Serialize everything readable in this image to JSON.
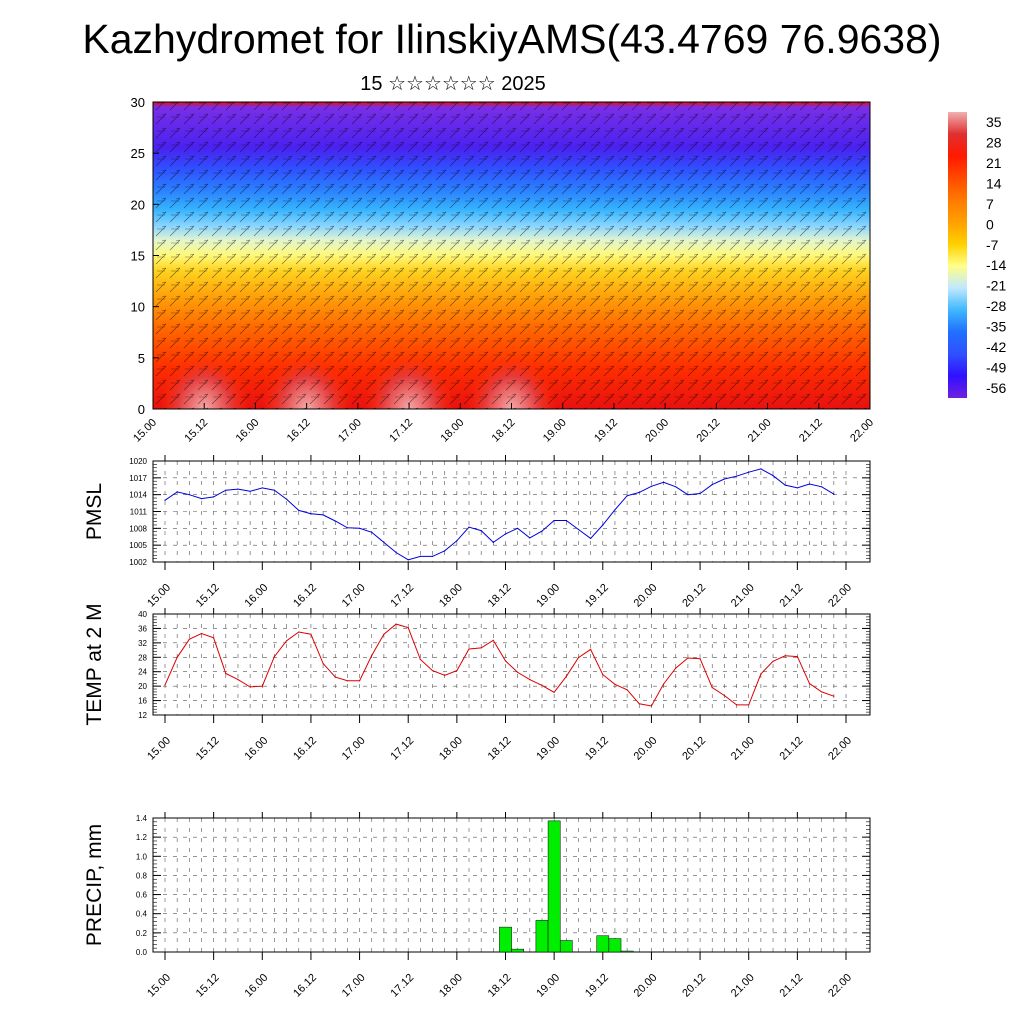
{
  "title": "Kazhydromet for IlinskiyAMS(43.4769 76.9638)",
  "subtitle": "15 ☆☆☆☆☆☆ 2025",
  "chart_data": [
    {
      "type": "heatmap",
      "ylim": [
        0,
        30
      ],
      "yticks": [
        "0",
        "5",
        "10",
        "15",
        "20",
        "25",
        "30"
      ],
      "xticks": [
        "15.00",
        "15.12",
        "16.00",
        "16.12",
        "17.00",
        "17.12",
        "18.00",
        "18.12",
        "19.00",
        "19.12",
        "20.00",
        "20.12",
        "21.00",
        "21.12",
        "22.00"
      ],
      "colorbar": {
        "labels": [
          "35",
          "28",
          "21",
          "14",
          "7",
          "0",
          "-7",
          "-14",
          "-21",
          "-28",
          "-35",
          "-42",
          "-49",
          "-56"
        ],
        "colors": [
          "#f0b0b0",
          "#e03030",
          "#ff1a00",
          "#ff4a00",
          "#ff7a00",
          "#ffa000",
          "#ffd000",
          "#ffff88",
          "#c0e8ff",
          "#40b8ff",
          "#2070ff",
          "#3050ff",
          "#3010ff",
          "#7020e0"
        ]
      },
      "layers": [
        {
          "value": -56,
          "color": "#7a2ee6"
        },
        {
          "value": -49,
          "color": "#4a22f0"
        },
        {
          "value": -42,
          "color": "#3050ff"
        },
        {
          "value": -35,
          "color": "#2b7dff"
        },
        {
          "value": -28,
          "color": "#35b3ff"
        },
        {
          "value": -21,
          "color": "#8fd7ff"
        },
        {
          "value": -14,
          "color": "#e2f5cf"
        },
        {
          "value": -7,
          "color": "#fff97a"
        },
        {
          "value": 0,
          "color": "#ffd21f"
        },
        {
          "value": 7,
          "color": "#ffa10a"
        },
        {
          "value": 14,
          "color": "#ff6a00"
        },
        {
          "value": 21,
          "color": "#ff2e00"
        },
        {
          "value": 28,
          "color": "#e81010"
        }
      ],
      "level_heights": [
        29.5,
        25.5,
        23.5,
        21.5,
        19.5,
        17.8,
        16.5,
        15.0,
        13.5,
        11.0,
        8.0,
        4.0,
        0
      ]
    },
    {
      "type": "line",
      "ylabel": "PMSL",
      "ylim": [
        1002,
        1020
      ],
      "yticks": [
        "1002",
        "1005",
        "1008",
        "1011",
        "1014",
        "1017",
        "1020"
      ],
      "xticks": [
        "15.00",
        "15.12",
        "16.00",
        "16.12",
        "17.00",
        "17.12",
        "18.00",
        "18.12",
        "19.00",
        "19.12",
        "20.00",
        "20.12",
        "21.00",
        "21.12",
        "22.00"
      ],
      "series": [
        {
          "color": "#0000dd",
          "x": [
            0,
            3,
            6,
            9,
            12,
            15,
            18,
            21,
            24,
            27,
            30,
            33,
            36,
            39,
            42,
            45,
            48,
            51,
            54,
            57,
            60,
            63,
            66,
            69,
            72,
            75,
            78,
            81,
            84,
            87,
            90,
            93,
            96,
            99,
            102,
            105,
            108,
            111,
            114,
            117,
            120,
            123,
            126,
            129,
            132,
            135,
            138,
            141,
            144,
            147,
            150,
            153,
            156,
            159,
            162,
            165
          ],
          "values": [
            1013.0,
            1014.5,
            1014.0,
            1013.3,
            1013.6,
            1014.8,
            1015.0,
            1014.6,
            1015.2,
            1014.8,
            1013.2,
            1011.2,
            1010.6,
            1010.4,
            1009.3,
            1008.1,
            1008.0,
            1007.3,
            1005.5,
            1003.7,
            1002.4,
            1003.0,
            1003.0,
            1004.0,
            1005.8,
            1008.2,
            1007.6,
            1005.5,
            1007.0,
            1008.0,
            1006.3,
            1007.5,
            1009.4,
            1009.4,
            1007.8,
            1006.2,
            1008.6,
            1011.3,
            1013.8,
            1014.4,
            1015.5,
            1016.2,
            1015.4,
            1014.0,
            1014.2,
            1015.8,
            1016.8,
            1017.3,
            1018.0,
            1018.6,
            1017.4,
            1015.7,
            1015.2,
            1015.9,
            1015.4,
            1014.1
          ]
        }
      ]
    },
    {
      "type": "line",
      "ylabel": "TEMP at 2 M",
      "ylim": [
        12,
        40
      ],
      "yticks": [
        "12",
        "16",
        "20",
        "24",
        "28",
        "32",
        "36",
        "40"
      ],
      "xticks": [
        "15.00",
        "15.12",
        "16.00",
        "16.12",
        "17.00",
        "17.12",
        "18.00",
        "18.12",
        "19.00",
        "19.12",
        "20.00",
        "20.12",
        "21.00",
        "21.12",
        "22.00"
      ],
      "series": [
        {
          "color": "#dd0000",
          "x": [
            0,
            3,
            6,
            9,
            12,
            15,
            18,
            21,
            24,
            27,
            30,
            33,
            36,
            39,
            42,
            45,
            48,
            51,
            54,
            57,
            60,
            63,
            66,
            69,
            72,
            75,
            78,
            81,
            84,
            87,
            90,
            93,
            96,
            99,
            102,
            105,
            108,
            111,
            114,
            117,
            120,
            123,
            126,
            129,
            132,
            135,
            138,
            141,
            144,
            147,
            150,
            153,
            156,
            159,
            162,
            165
          ],
          "values": [
            20.3,
            28.0,
            33.0,
            34.6,
            33.4,
            23.5,
            21.8,
            19.8,
            20.0,
            28.2,
            32.6,
            35.0,
            34.4,
            26.3,
            22.5,
            21.5,
            21.5,
            28.5,
            34.4,
            37.2,
            36.2,
            27.4,
            24.3,
            23.0,
            24.3,
            30.3,
            30.6,
            32.7,
            27.0,
            23.8,
            21.8,
            20.2,
            18.3,
            22.7,
            27.9,
            30.2,
            23.2,
            20.5,
            19.0,
            15.1,
            14.5,
            20.6,
            25.0,
            27.8,
            27.6,
            19.6,
            17.4,
            14.8,
            14.8,
            23.4,
            26.9,
            28.4,
            28.2,
            20.7,
            18.4,
            17.2
          ]
        }
      ]
    },
    {
      "type": "bar",
      "ylabel": "PRECIP, mm",
      "ylim": [
        0.0,
        1.4
      ],
      "yticks": [
        "0.0",
        "0.2",
        "0.4",
        "0.6",
        "0.8",
        "1.0",
        "1.2",
        "1.4"
      ],
      "xticks": [
        "15.00",
        "15.12",
        "16.00",
        "16.12",
        "17.00",
        "17.12",
        "18.00",
        "18.12",
        "19.00",
        "19.12",
        "20.00",
        "20.12",
        "21.00",
        "21.12",
        "22.00"
      ],
      "color": "#00ee00",
      "bars": [
        {
          "x": 84,
          "value": 0.26
        },
        {
          "x": 87,
          "value": 0.03
        },
        {
          "x": 93,
          "value": 0.33
        },
        {
          "x": 96,
          "value": 1.37
        },
        {
          "x": 99,
          "value": 0.12
        },
        {
          "x": 108,
          "value": 0.17
        },
        {
          "x": 111,
          "value": 0.14
        },
        {
          "x": 114,
          "value": 0.01
        }
      ]
    }
  ]
}
